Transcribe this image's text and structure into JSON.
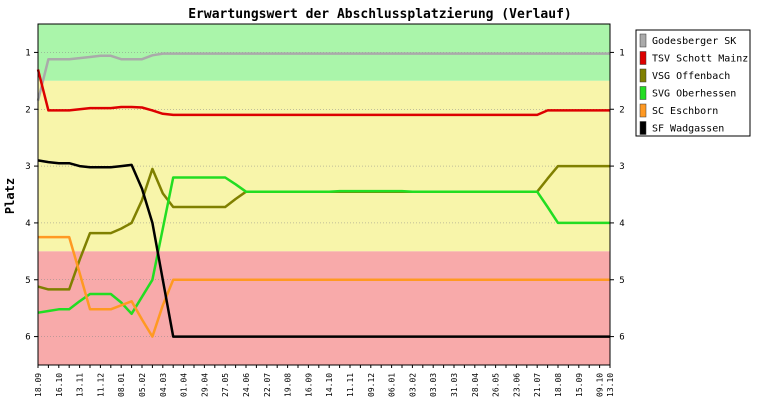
{
  "chart_data": {
    "type": "line",
    "title": "Erwartungswert der Abschlussplatzierung (Verlauf)",
    "ylabel": "Platz",
    "xlabel": "",
    "ylim": [
      6.5,
      0.5
    ],
    "y_ticks": [
      "1",
      "2",
      "3",
      "4",
      "5",
      "6"
    ],
    "x": [
      "18.09",
      "02.10",
      "16.10",
      "30.10",
      "13.11",
      "27.11",
      "11.12",
      "25.12",
      "08.01",
      "22.01",
      "05.02",
      "19.02",
      "04.03",
      "18.03",
      "01.04",
      "15.04",
      "29.04",
      "13.05",
      "27.05",
      "10.06",
      "24.06",
      "08.07",
      "22.07",
      "05.08",
      "19.08",
      "02.09",
      "16.09",
      "30.09",
      "14.10",
      "28.10",
      "11.11",
      "25.11",
      "09.12",
      "23.12",
      "06.01",
      "20.01",
      "03.02",
      "17.02",
      "03.03",
      "17.03",
      "31.03",
      "14.04",
      "28.04",
      "12.05",
      "26.05",
      "09.06",
      "23.06",
      "07.07",
      "21.07",
      "04.08",
      "18.08",
      "01.09",
      "15.09",
      "29.09",
      "09.10",
      "13.10"
    ],
    "x_tick_labels": [
      "18.09",
      "16.10",
      "13.11",
      "11.12",
      "08.01",
      "05.02",
      "04.03",
      "01.04",
      "29.04",
      "27.05",
      "24.06",
      "22.07",
      "19.08",
      "16.09",
      "14.10",
      "11.11",
      "09.12",
      "06.01",
      "03.02",
      "03.03",
      "31.03",
      "28.04",
      "26.05",
      "23.06",
      "21.07",
      "18.08",
      "15.09",
      "09.10",
      "13.10"
    ],
    "bands": [
      {
        "from": 0.5,
        "to": 1.5,
        "color": "#aaf5aa"
      },
      {
        "from": 1.5,
        "to": 4.5,
        "color": "#f8f5aa"
      },
      {
        "from": 4.5,
        "to": 6.5,
        "color": "#f8aaaa"
      }
    ],
    "series": [
      {
        "name": "Godesberger SK",
        "color": "#aaaaaa",
        "values": [
          1.85,
          1.12,
          1.12,
          1.12,
          1.1,
          1.08,
          1.06,
          1.06,
          1.12,
          1.12,
          1.12,
          1.05,
          1.02,
          1.02,
          1.02,
          1.02,
          1.02,
          1.02,
          1.02,
          1.02,
          1.02,
          1.02,
          1.02,
          1.02,
          1.02,
          1.02,
          1.02,
          1.02,
          1.02,
          1.02,
          1.02,
          1.02,
          1.02,
          1.02,
          1.02,
          1.02,
          1.02,
          1.02,
          1.02,
          1.02,
          1.02,
          1.02,
          1.02,
          1.02,
          1.02,
          1.02,
          1.02,
          1.02,
          1.02,
          1.02,
          1.02,
          1.02,
          1.02,
          1.02,
          1.02,
          1.02
        ]
      },
      {
        "name": "TSV Schott Mainz",
        "color": "#dd0000",
        "values": [
          1.3,
          2.02,
          2.02,
          2.02,
          2.0,
          1.98,
          1.98,
          1.98,
          1.96,
          1.96,
          1.97,
          2.02,
          2.08,
          2.1,
          2.1,
          2.1,
          2.1,
          2.1,
          2.1,
          2.1,
          2.1,
          2.1,
          2.1,
          2.1,
          2.1,
          2.1,
          2.1,
          2.1,
          2.1,
          2.1,
          2.1,
          2.1,
          2.1,
          2.1,
          2.1,
          2.1,
          2.1,
          2.1,
          2.1,
          2.1,
          2.1,
          2.1,
          2.1,
          2.1,
          2.1,
          2.1,
          2.1,
          2.1,
          2.1,
          2.02,
          2.02,
          2.02,
          2.02,
          2.02,
          2.02,
          2.02
        ]
      },
      {
        "name": "VSG Offenbach",
        "color": "#808000",
        "values": [
          5.12,
          5.17,
          5.17,
          5.17,
          4.65,
          4.18,
          4.18,
          4.18,
          4.1,
          4.0,
          3.6,
          3.05,
          3.48,
          3.72,
          3.72,
          3.72,
          3.72,
          3.72,
          3.72,
          3.58,
          3.45,
          3.45,
          3.45,
          3.45,
          3.45,
          3.45,
          3.45,
          3.45,
          3.45,
          3.45,
          3.45,
          3.45,
          3.45,
          3.45,
          3.45,
          3.45,
          3.45,
          3.45,
          3.45,
          3.45,
          3.45,
          3.45,
          3.45,
          3.45,
          3.45,
          3.45,
          3.45,
          3.45,
          3.45,
          3.22,
          3.0,
          3.0,
          3.0,
          3.0,
          3.0,
          3.0
        ]
      },
      {
        "name": "SVG Oberhessen",
        "color": "#22dd22",
        "values": [
          5.58,
          5.55,
          5.52,
          5.52,
          5.38,
          5.25,
          5.25,
          5.25,
          5.4,
          5.6,
          5.3,
          5.0,
          4.1,
          3.2,
          3.2,
          3.2,
          3.2,
          3.2,
          3.2,
          3.32,
          3.45,
          3.45,
          3.45,
          3.45,
          3.45,
          3.45,
          3.45,
          3.45,
          3.45,
          3.44,
          3.44,
          3.44,
          3.44,
          3.44,
          3.44,
          3.44,
          3.45,
          3.45,
          3.45,
          3.45,
          3.45,
          3.45,
          3.45,
          3.45,
          3.45,
          3.45,
          3.45,
          3.45,
          3.45,
          3.72,
          4.0,
          4.0,
          4.0,
          4.0,
          4.0,
          4.0
        ]
      },
      {
        "name": "SC Eschborn",
        "color": "#ff9922",
        "values": [
          4.25,
          4.25,
          4.25,
          4.25,
          4.88,
          5.52,
          5.52,
          5.52,
          5.45,
          5.38,
          5.7,
          6.0,
          5.45,
          5.0,
          5.0,
          5.0,
          5.0,
          5.0,
          5.0,
          5.0,
          5.0,
          5.0,
          5.0,
          5.0,
          5.0,
          5.0,
          5.0,
          5.0,
          5.0,
          5.0,
          5.0,
          5.0,
          5.0,
          5.0,
          5.0,
          5.0,
          5.0,
          5.0,
          5.0,
          5.0,
          5.0,
          5.0,
          5.0,
          5.0,
          5.0,
          5.0,
          5.0,
          5.0,
          5.0,
          5.0,
          5.0,
          5.0,
          5.0,
          5.0,
          5.0,
          5.0
        ]
      },
      {
        "name": "SF Wadgassen",
        "color": "#000000",
        "values": [
          2.9,
          2.93,
          2.95,
          2.95,
          3.0,
          3.02,
          3.02,
          3.02,
          3.0,
          2.98,
          3.4,
          4.0,
          5.0,
          6.0,
          6.0,
          6.0,
          6.0,
          6.0,
          6.0,
          6.0,
          6.0,
          6.0,
          6.0,
          6.0,
          6.0,
          6.0,
          6.0,
          6.0,
          6.0,
          6.0,
          6.0,
          6.0,
          6.0,
          6.0,
          6.0,
          6.0,
          6.0,
          6.0,
          6.0,
          6.0,
          6.0,
          6.0,
          6.0,
          6.0,
          6.0,
          6.0,
          6.0,
          6.0,
          6.0,
          6.0,
          6.0,
          6.0,
          6.0,
          6.0,
          6.0,
          6.0
        ]
      }
    ]
  }
}
